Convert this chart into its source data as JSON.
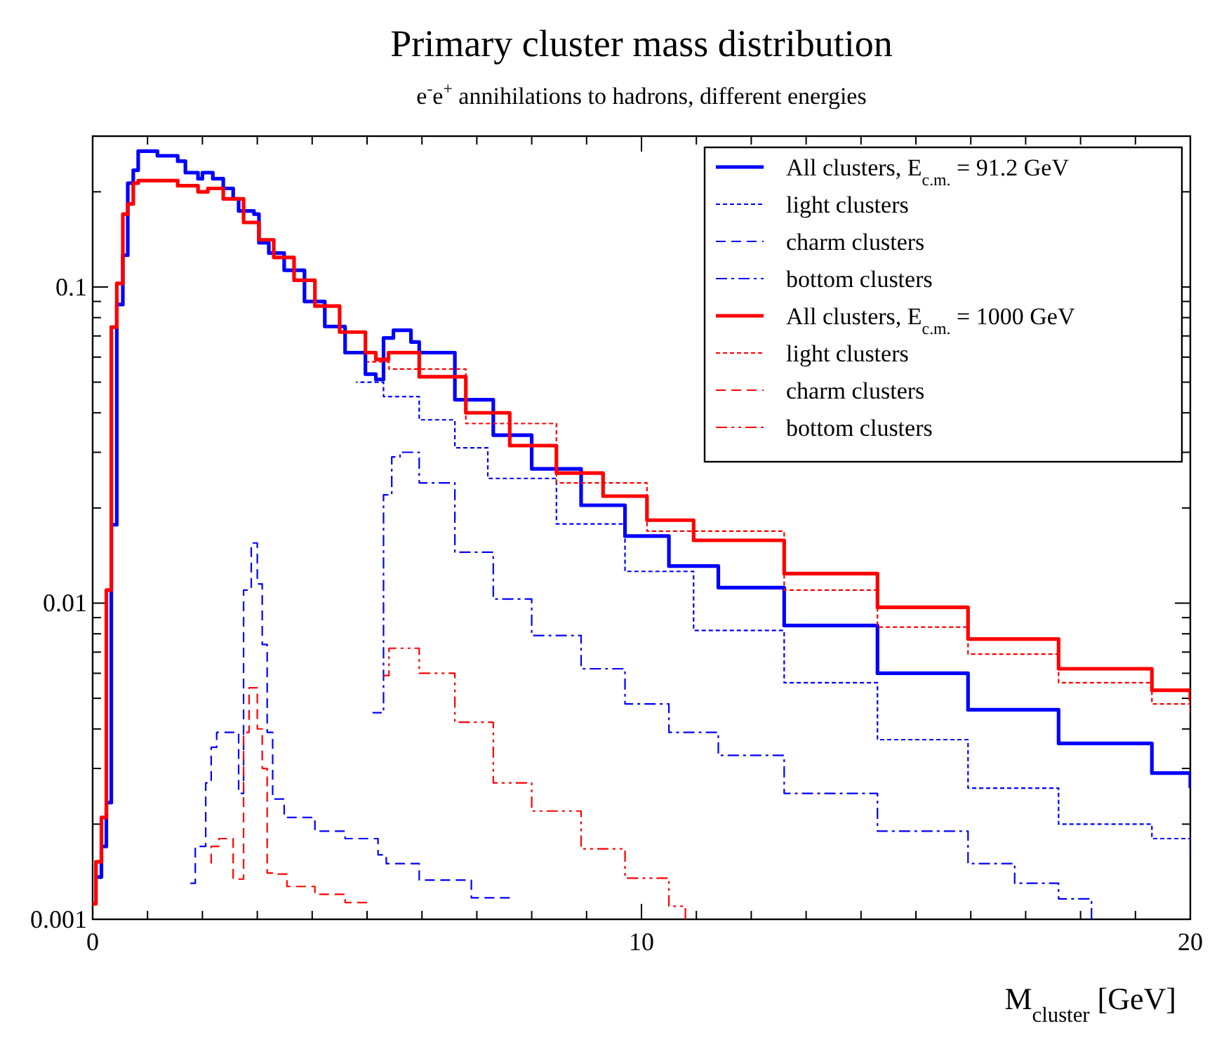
{
  "chart_data": {
    "type": "step",
    "title": "Primary cluster mass distribution",
    "subtitle": "e$^{-}$e$^{+}$ annihilations to hadrons, different energies",
    "xlabel": "M$_{cluster}$ [GeV]",
    "xlim": [
      0,
      20
    ],
    "xticks": [
      0,
      {
        "value": 1,
        "label": null
      },
      {
        "value": 2,
        "label": null
      },
      {
        "value": 3,
        "label": null
      },
      {
        "value": 4,
        "label": null
      },
      {
        "value": 5,
        "label": null
      },
      {
        "value": 6,
        "label": null
      },
      {
        "value": 7,
        "label": null
      },
      {
        "value": 8,
        "label": null
      },
      {
        "value": 9,
        "label": null
      },
      10,
      {
        "value": 11,
        "label": null
      },
      {
        "value": 12,
        "label": null
      },
      {
        "value": 13,
        "label": null
      },
      {
        "value": 14,
        "label": null
      },
      {
        "value": 15,
        "label": null
      },
      {
        "value": 16,
        "label": null
      },
      {
        "value": 17,
        "label": null
      },
      {
        "value": 18,
        "label": null
      },
      {
        "value": 19,
        "label": null
      },
      20
    ],
    "ylim": [
      0.001,
      0.3
    ],
    "yticks": [
      0.001,
      {
        "value": 0.002,
        "label": null
      },
      {
        "value": 0.003,
        "label": null
      },
      {
        "value": 0.004,
        "label": null
      },
      {
        "value": 0.005,
        "label": null
      },
      {
        "value": 0.006,
        "label": null
      },
      {
        "value": 0.007,
        "label": null
      },
      {
        "value": 0.008,
        "label": null
      },
      {
        "value": 0.009,
        "label": null
      },
      0.01,
      {
        "value": 0.02,
        "label": null
      },
      {
        "value": 0.03,
        "label": null
      },
      {
        "value": 0.04,
        "label": null
      },
      {
        "value": 0.05,
        "label": null
      },
      {
        "value": 0.06,
        "label": null
      },
      {
        "value": 0.07,
        "label": null
      },
      {
        "value": 0.08,
        "label": null
      },
      {
        "value": 0.09,
        "label": null
      },
      0.1,
      {
        "value": 0.2,
        "label": null
      },
      {
        "value": 0.3,
        "label": null
      }
    ],
    "log": "y",
    "grid": false,
    "legend": "top right",
    "series": [
      {
        "name": "All clusters, E$_{c.m.}$ = 91.2 GeV",
        "color": "#0000ff",
        "line_style": "solid",
        "x": [
          0.06,
          0.16,
          0.25,
          0.34,
          0.44,
          0.55,
          0.64,
          0.74,
          0.83,
          1.18,
          1.55,
          1.69,
          1.92,
          2.0,
          2.19,
          2.38,
          2.56,
          2.66,
          2.94,
          3.03,
          3.21,
          3.49,
          3.86,
          4.23,
          4.6,
          4.97,
          5.16,
          5.3,
          5.48,
          5.8,
          5.95,
          6.6,
          7.3,
          8.0,
          8.9,
          9.7,
          10.5,
          11.4,
          12.6,
          14.3,
          15.95,
          17.6,
          19.3,
          20
        ],
        "values": [
          0.00136,
          0.0017,
          0.00234,
          0.0177,
          0.088,
          0.126,
          0.213,
          0.234,
          0.269,
          0.26,
          0.25,
          0.23,
          0.22,
          0.23,
          0.22,
          0.205,
          0.19,
          0.174,
          0.17,
          0.138,
          0.128,
          0.113,
          0.09,
          0.075,
          0.062,
          0.053,
          0.051,
          0.069,
          0.073,
          0.067,
          0.062,
          0.044,
          0.034,
          0.0266,
          0.0204,
          0.0163,
          0.0131,
          0.0112,
          0.0085,
          0.006,
          0.0046,
          0.0036,
          0.0029,
          0.0026
        ]
      },
      {
        "name": "light clusters",
        "color": "#0000ff",
        "line_style": "dotted",
        "x": [
          4.8,
          5.3,
          5.95,
          6.6,
          7.2,
          8.45,
          9.7,
          10.95,
          12.6,
          14.3,
          15.95,
          17.6,
          19.3,
          20
        ],
        "values": [
          0.05,
          0.045,
          0.038,
          0.031,
          0.0248,
          0.0178,
          0.0126,
          0.0082,
          0.0056,
          0.0037,
          0.0026,
          0.002,
          0.0018,
          0.0016
        ]
      },
      {
        "name": "charm clusters",
        "color": "#0000ff",
        "line_style": "dashed",
        "x": [
          1.78,
          1.87,
          2.06,
          2.16,
          2.26,
          2.66,
          2.75,
          2.89,
          3.0,
          3.09,
          3.18,
          3.28,
          3.49,
          4.05,
          4.6,
          5.2,
          5.35,
          5.95,
          6.9,
          7.6
        ],
        "values": [
          0.0013,
          0.0017,
          0.0027,
          0.0035,
          0.0039,
          0.0025,
          0.011,
          0.0155,
          0.0115,
          0.0074,
          0.0039,
          0.0024,
          0.0021,
          0.0019,
          0.0018,
          0.0016,
          0.0015,
          0.00133,
          0.00117,
          0.00117
        ]
      },
      {
        "name": "bottom clusters",
        "color": "#0000ff",
        "line_style": "dashdot",
        "x": [
          5.1,
          5.3,
          5.45,
          5.6,
          5.95,
          6.6,
          7.3,
          8.0,
          8.9,
          9.7,
          10.5,
          11.4,
          12.6,
          14.3,
          15.95,
          16.8,
          17.6,
          18.2
        ],
        "values": [
          0.0045,
          0.022,
          0.029,
          0.03,
          0.024,
          0.0145,
          0.0103,
          0.0079,
          0.0062,
          0.0048,
          0.0039,
          0.0033,
          0.0025,
          0.0019,
          0.0015,
          0.0013,
          0.00116,
          0.001
        ]
      },
      {
        "name": "All clusters, E$_{c.m.}$ = 1000 GeV",
        "color": "#ff0000",
        "line_style": "solid",
        "x": [
          0.0,
          0.06,
          0.16,
          0.25,
          0.34,
          0.44,
          0.55,
          0.64,
          0.74,
          0.83,
          1.55,
          1.92,
          2.1,
          2.38,
          2.75,
          3.03,
          3.3,
          3.67,
          4.05,
          4.5,
          4.97,
          5.16,
          5.39,
          5.95,
          6.8,
          7.6,
          8.45,
          9.3,
          10.1,
          10.95,
          12.6,
          14.3,
          15.95,
          17.6,
          19.3,
          20
        ],
        "values": [
          0.00112,
          0.00152,
          0.0021,
          0.011,
          0.0747,
          0.1026,
          0.17,
          0.183,
          0.213,
          0.217,
          0.209,
          0.2,
          0.205,
          0.19,
          0.16,
          0.141,
          0.124,
          0.105,
          0.087,
          0.072,
          0.062,
          0.059,
          0.062,
          0.052,
          0.04,
          0.0315,
          0.0258,
          0.0218,
          0.0183,
          0.0158,
          0.0124,
          0.0097,
          0.0077,
          0.0062,
          0.0053,
          0.0049
        ]
      },
      {
        "name": "light clusters",
        "color": "#ff0000",
        "line_style": "dotted",
        "x": [
          5.0,
          5.4,
          6.8,
          8.45,
          10.1,
          12.6,
          14.3,
          15.95,
          17.6,
          19.3,
          20
        ],
        "values": [
          0.058,
          0.055,
          0.037,
          0.024,
          0.0169,
          0.011,
          0.0084,
          0.0069,
          0.0056,
          0.0048,
          0.0045
        ]
      },
      {
        "name": "charm clusters",
        "color": "#ff0000",
        "line_style": "dashed",
        "x": [
          2.06,
          2.16,
          2.3,
          2.56,
          2.75,
          2.85,
          3.0,
          3.09,
          3.18,
          3.28,
          3.54,
          4.05,
          4.6,
          5.0
        ],
        "values": [
          0.0015,
          0.0017,
          0.0018,
          0.00134,
          0.0039,
          0.0054,
          0.004,
          0.003,
          0.0014,
          0.00139,
          0.00127,
          0.0012,
          0.00113,
          0.00113
        ]
      },
      {
        "name": "bottom clusters",
        "color": "#ff0000",
        "line_style": "dashdotdot",
        "x": [
          5.25,
          5.4,
          5.6,
          5.95,
          6.6,
          7.3,
          8.0,
          8.9,
          9.7,
          10.5,
          10.8
        ],
        "values": [
          0.0059,
          0.0072,
          0.0072,
          0.006,
          0.0042,
          0.0027,
          0.0022,
          0.00167,
          0.00135,
          0.0011,
          0.001
        ]
      }
    ]
  }
}
